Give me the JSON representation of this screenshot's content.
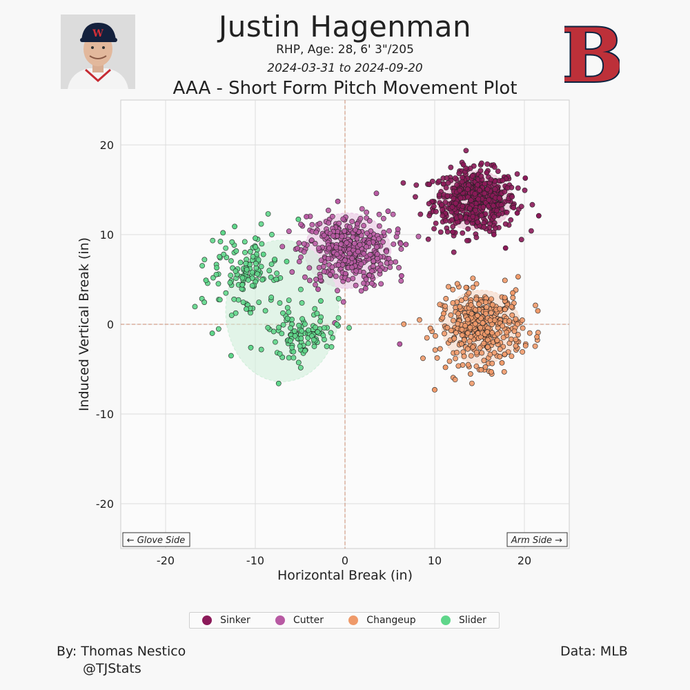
{
  "header": {
    "player_name": "Justin Hagenman",
    "player_info": "RHP, Age: 28, 6' 3\"/205",
    "date_range": "2024-03-31 to 2024-09-20",
    "chart_title": "AAA - Short Form Pitch Movement Plot",
    "photo_icon": "player-headshot-icon",
    "logo_icon": "red-sox-b-logo-icon",
    "logo_colors": {
      "fill": "#bd3039",
      "outline": "#0c2340"
    }
  },
  "chart_data": {
    "type": "scatter",
    "title": "AAA - Short Form Pitch Movement Plot",
    "xlabel": "Horizontal Break (in)",
    "ylabel": "Induced Vertical Break (in)",
    "xlim": [
      -25,
      25
    ],
    "ylim": [
      -25,
      25
    ],
    "xticks": [
      -20,
      -10,
      0,
      10,
      20
    ],
    "yticks": [
      -20,
      -10,
      0,
      10,
      20
    ],
    "grid": true,
    "reference_lines": {
      "x": 0,
      "y": 0,
      "color": "#c9886c"
    },
    "side_labels": {
      "left": "← Glove Side",
      "right": "Arm Side →"
    },
    "legend_position": "bottom",
    "series": [
      {
        "name": "Sinker",
        "color": "#8b1a59",
        "center": [
          14.5,
          13.8
        ],
        "spread": [
          2.3,
          1.7
        ],
        "ellipse_radius": [
          4.2,
          3.3
        ],
        "ellipse_color": "#e9b6cf",
        "points": [
          [
            21.6,
            12.1
          ],
          [
            19.2,
            12.4
          ],
          [
            20.1,
            16.3
          ],
          [
            17.9,
            8.5
          ],
          [
            9.4,
            15.6
          ],
          [
            13.2,
            17.8
          ],
          [
            15.8,
            16.9
          ],
          [
            12.0,
            10.3
          ],
          [
            16.6,
            10.0
          ],
          [
            18.8,
            13.0
          ]
        ]
      },
      {
        "name": "Cutter",
        "color": "#b85aa3",
        "center": [
          0.3,
          8.2
        ],
        "spread": [
          2.5,
          2.0
        ],
        "ellipse_radius": [
          4.8,
          4.2
        ],
        "ellipse_color": "#e7bfe0",
        "points": [
          [
            3.5,
            14.6
          ],
          [
            6.1,
            -2.2
          ],
          [
            6.8,
            8.9
          ],
          [
            6.3,
            5.4
          ],
          [
            -4.3,
            12.0
          ],
          [
            -0.8,
            13.7
          ],
          [
            4.8,
            12.6
          ],
          [
            -3.0,
            3.9
          ],
          [
            2.3,
            4.0
          ],
          [
            5.9,
            10.6
          ]
        ]
      },
      {
        "name": "Changeup",
        "color": "#ef9a6a",
        "center": [
          15.2,
          -0.3
        ],
        "spread": [
          2.3,
          2.0
        ],
        "ellipse_radius": [
          4.4,
          4.1
        ],
        "ellipse_color": "#f6d4bf",
        "points": [
          [
            10.0,
            -7.3
          ],
          [
            21.5,
            1.5
          ],
          [
            19.3,
            5.3
          ],
          [
            11.2,
            -4.8
          ],
          [
            21.4,
            -1.4
          ],
          [
            13.5,
            4.1
          ],
          [
            16.3,
            -5.3
          ],
          [
            18.7,
            3.5
          ],
          [
            11.0,
            1.2
          ],
          [
            17.5,
            -4.3
          ]
        ]
      },
      {
        "name": "Slider",
        "color": "#5fd68a",
        "center": [
          -8.0,
          1.0
        ],
        "spread": [
          3.0,
          2.6
        ],
        "ellipse_radius": [
          6.3,
          7.9
        ],
        "ellipse_color": "#cdeed8",
        "ellipse_center": [
          -7.0,
          1.5
        ],
        "points": [
          [
            -15.5,
            4.9
          ],
          [
            -14.8,
            -1.0
          ],
          [
            -12.3,
            10.9
          ],
          [
            -13.6,
            10.2
          ],
          [
            -12.7,
            -3.5
          ],
          [
            -9.1,
            7.8
          ],
          [
            -10.0,
            9.6
          ],
          [
            -6.5,
            7.0
          ],
          [
            -5.2,
            11.7
          ],
          [
            -7.4,
            -6.6
          ],
          [
            -2.7,
            2.6
          ],
          [
            -0.9,
            0.0
          ],
          [
            -14.3,
            6.3
          ],
          [
            -11.0,
            1.7
          ],
          [
            -10.5,
            -2.6
          ]
        ]
      }
    ]
  },
  "footer": {
    "byline_name": "By: Thomas Nestico",
    "byline_handle": "@TJStats",
    "data_source": "Data: MLB"
  }
}
